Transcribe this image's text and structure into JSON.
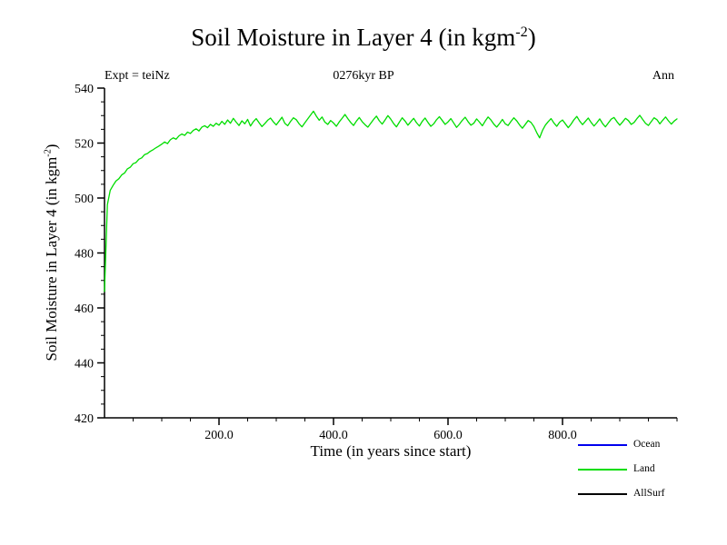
{
  "title": {
    "prefix": "Soil Moisture in Layer 4 (in kgm",
    "sup": "-2",
    "suffix": ")"
  },
  "header": {
    "left": "Expt = teiNz",
    "center": "0276kyr BP",
    "right": "Ann"
  },
  "axes": {
    "x_label": "Time (in years since start)",
    "y_label": {
      "prefix": "Soil Moisture in Layer 4 (in kgm",
      "sup": "-2",
      "suffix": ")"
    },
    "x_range": [
      0,
      1000
    ],
    "y_range": [
      420,
      540
    ],
    "x_ticks": [
      200,
      400,
      600,
      800
    ],
    "x_tick_labels": [
      "200.0",
      "400.0",
      "600.0",
      "800.0"
    ],
    "y_ticks": [
      420,
      440,
      460,
      480,
      500,
      520,
      540
    ],
    "y_tick_labels": [
      "420",
      "440",
      "460",
      "480",
      "500",
      "520",
      "540"
    ],
    "x_minor_step": 50,
    "y_minor_step": 5
  },
  "legend": {
    "items": [
      {
        "label": "Ocean",
        "color": "#0000ee"
      },
      {
        "label": "Land",
        "color": "#00dd00"
      },
      {
        "label": "AllSurf",
        "color": "#000000"
      }
    ]
  },
  "chart_data": {
    "type": "line",
    "title": "Soil Moisture in Layer 4 (in kgm⁻²)",
    "subtitle_left": "Expt = teiNz",
    "subtitle_center": "0276kyr BP",
    "subtitle_right": "Ann",
    "xlabel": "Time (in years since start)",
    "ylabel": "Soil Moisture in Layer 4 (in kgm⁻²)",
    "xlim": [
      0,
      1000
    ],
    "ylim": [
      420,
      540
    ],
    "grid": false,
    "legend_position": "bottom-right",
    "legend_entries": [
      "Ocean",
      "Land",
      "AllSurf"
    ],
    "x_start": 0,
    "x_step": 5,
    "series": [
      {
        "name": "Land",
        "color": "#00dd00",
        "values": [
          466.0,
          497.5,
          502.8,
          504.6,
          506.2,
          507.0,
          508.4,
          509.1,
          510.6,
          511.2,
          512.5,
          512.9,
          514.1,
          514.6,
          515.8,
          516.2,
          517.0,
          517.6,
          518.3,
          518.9,
          519.6,
          520.4,
          519.8,
          521.2,
          521.9,
          521.4,
          522.6,
          523.3,
          522.8,
          524.0,
          523.5,
          524.6,
          525.2,
          524.4,
          525.8,
          526.3,
          525.6,
          526.8,
          526.1,
          527.2,
          526.5,
          527.9,
          526.8,
          528.4,
          527.2,
          529.0,
          527.6,
          526.4,
          528.1,
          527.0,
          528.6,
          526.2,
          527.8,
          528.9,
          527.4,
          526.0,
          527.1,
          528.3,
          529.1,
          527.7,
          526.6,
          528.0,
          529.4,
          527.2,
          526.3,
          527.9,
          529.2,
          528.5,
          527.0,
          525.9,
          527.4,
          528.8,
          530.2,
          531.6,
          529.8,
          528.3,
          529.5,
          527.6,
          526.8,
          528.2,
          527.3,
          526.1,
          527.7,
          529.0,
          530.4,
          528.9,
          527.5,
          526.4,
          528.0,
          529.3,
          527.8,
          526.7,
          525.8,
          527.2,
          528.6,
          529.8,
          528.1,
          526.9,
          528.4,
          530.0,
          528.7,
          527.1,
          525.9,
          527.6,
          529.2,
          528.0,
          526.5,
          527.8,
          529.0,
          527.4,
          526.2,
          527.9,
          529.1,
          527.5,
          526.1,
          527.0,
          528.5,
          529.6,
          528.2,
          526.8,
          527.7,
          528.9,
          527.3,
          525.7,
          526.9,
          528.3,
          529.4,
          527.8,
          526.5,
          527.2,
          528.8,
          527.6,
          526.3,
          528.0,
          529.5,
          528.4,
          526.9,
          525.8,
          527.1,
          528.6,
          527.0,
          526.4,
          527.9,
          529.2,
          528.1,
          526.6,
          525.4,
          526.8,
          528.2,
          527.5,
          526.0,
          523.8,
          521.9,
          524.6,
          526.5,
          527.8,
          528.9,
          527.3,
          526.1,
          527.6,
          528.4,
          527.0,
          525.6,
          526.9,
          528.5,
          529.7,
          528.0,
          526.7,
          527.9,
          529.1,
          527.5,
          526.2,
          527.4,
          528.8,
          527.1,
          525.9,
          527.3,
          528.7,
          529.3,
          527.8,
          526.5,
          527.7,
          529.0,
          528.2,
          526.8,
          527.5,
          528.9,
          530.1,
          528.6,
          527.2,
          526.4,
          527.8,
          529.2,
          528.5,
          527.0,
          528.3,
          529.5,
          528.1,
          526.9,
          528.0,
          528.8
        ]
      }
    ]
  }
}
